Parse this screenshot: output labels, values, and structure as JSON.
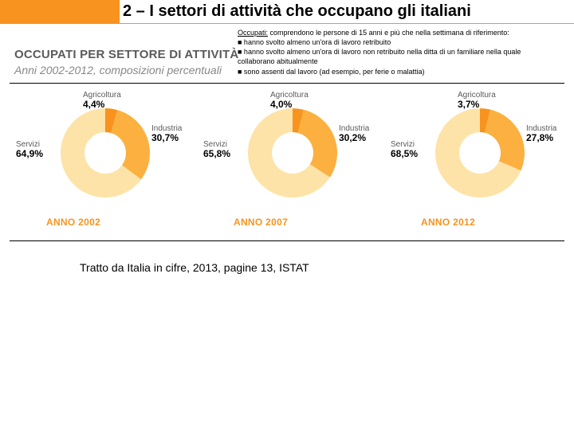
{
  "title": "2 – I settori di attività che occupano gli italiani",
  "definition": {
    "lead": "Occupati:",
    "text": " comprendono le persone di 15 anni e più che nella settimana di riferimento:",
    "b1": "■ hanno svolto almeno un'ora di lavoro retribuito",
    "b2": "■ hanno svolto almeno un'ora di lavoro non retribuito nella ditta di un familiare nella quale collaborano abitualmente",
    "b3": "■ sono assenti dal lavoro (ad esempio, per ferie o malattia)"
  },
  "section": {
    "title": "OCCUPATI PER SETTORE DI ATTIVITÀ",
    "subtitle": "Anni 2002-2012, composizioni percentuali"
  },
  "colors": {
    "agricoltura": "#f7931e",
    "industria": "#fbb040",
    "servizi": "#fde3a7",
    "hole": "#ffffff"
  },
  "sector_labels": {
    "agri": "Agricoltura",
    "ind": "Industria",
    "serv": "Servizi"
  },
  "charts": [
    {
      "year": "ANNO 2002",
      "agricoltura": 4.4,
      "agricoltura_label": "4,4%",
      "industria": 30.7,
      "industria_label": "30,7%",
      "servizi": 64.9,
      "servizi_label": "64,9%"
    },
    {
      "year": "ANNO 2007",
      "agricoltura": 4.0,
      "agricoltura_label": "4,0%",
      "industria": 30.2,
      "industria_label": "30,2%",
      "servizi": 65.8,
      "servizi_label": "65,8%"
    },
    {
      "year": "ANNO 2012",
      "agricoltura": 3.7,
      "agricoltura_label": "3,7%",
      "industria": 27.8,
      "industria_label": "27,8%",
      "servizi": 68.5,
      "servizi_label": "68,5%"
    }
  ],
  "donut": {
    "outer_r": 56,
    "inner_r": 26,
    "start_angle_deg": -90
  },
  "source": "Tratto da Italia in cifre, 2013, pagine 13, ISTAT"
}
